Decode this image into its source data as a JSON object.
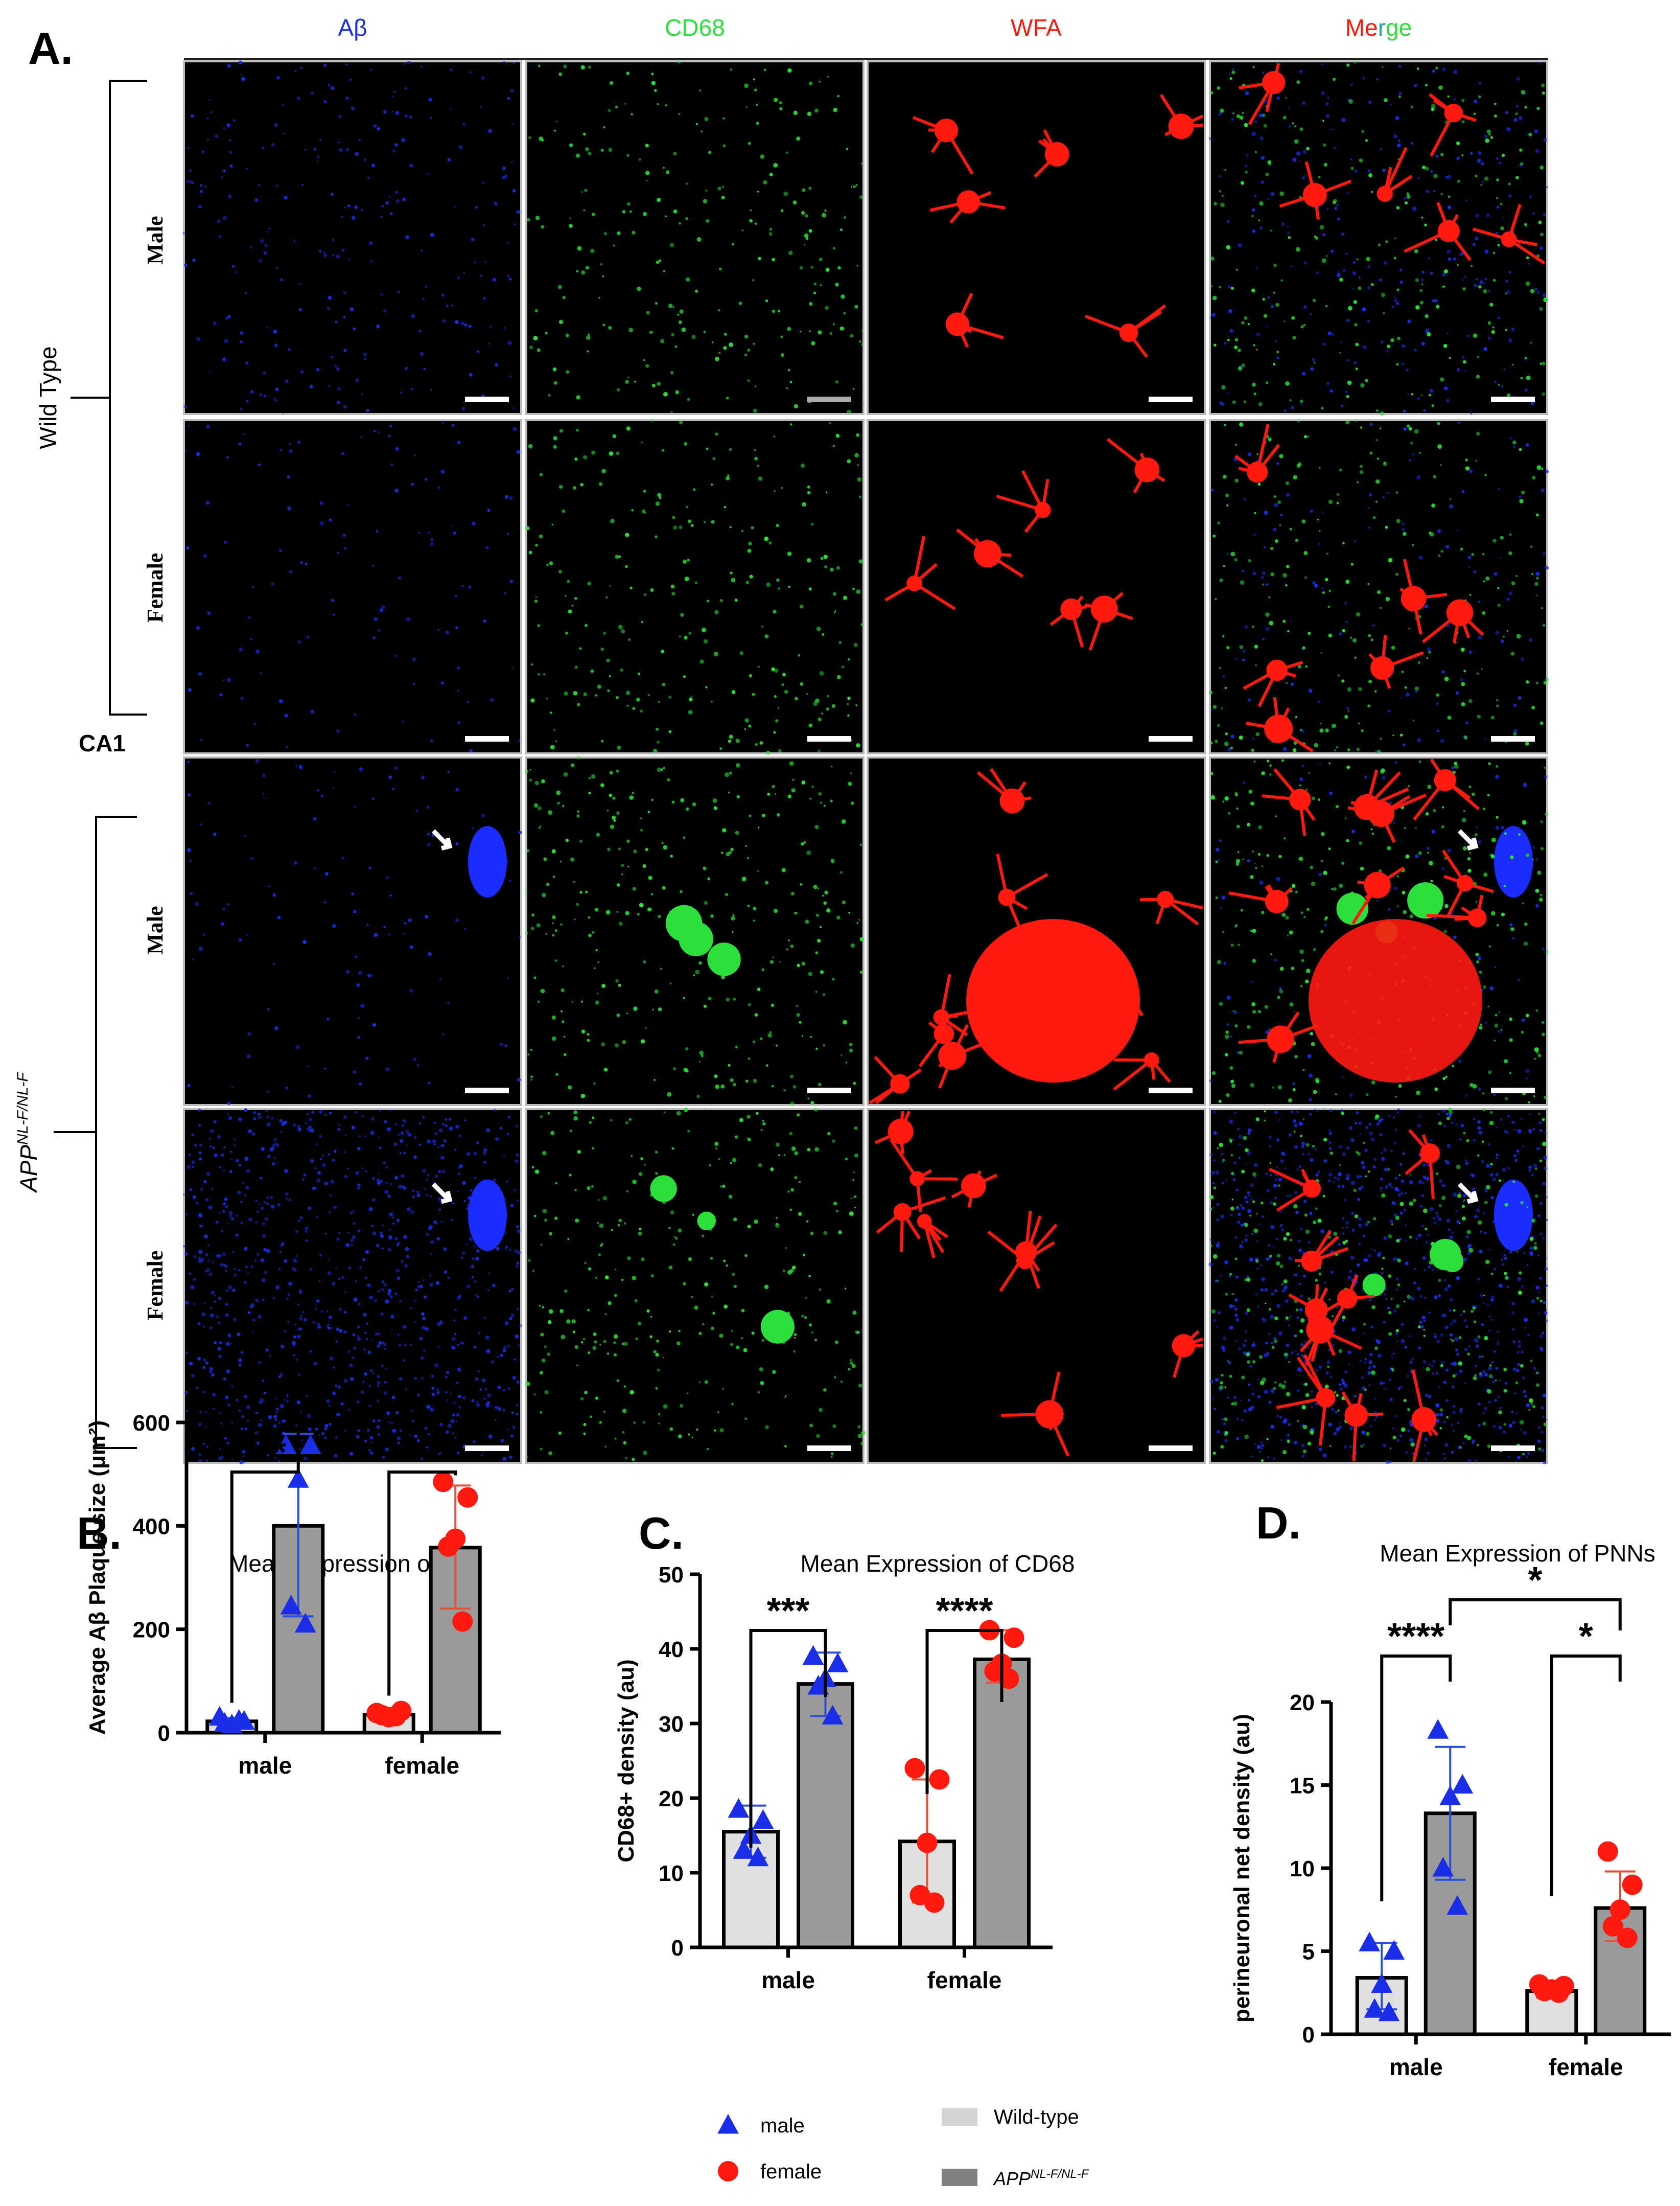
{
  "colors": {
    "blue": "#1a2ee8",
    "green": "#2be03a",
    "red": "#ff1a10",
    "teal": "#2aa0a0",
    "wt_bar": "#e0e0e0",
    "app_bar": "#9a9a9a",
    "bar_border": "#000000",
    "error_male": "#2b4fd9",
    "error_female": "#e8503a"
  },
  "panel_a": {
    "label": "A.",
    "columns": [
      "Aβ",
      "CD68",
      "WFA"
    ],
    "merge_parts": [
      {
        "text": "M",
        "color": "#ff1a10"
      },
      {
        "text": "e",
        "color": "#ff1a10"
      },
      {
        "text": "r",
        "color": "#2aa0a0"
      },
      {
        "text": "ge",
        "color": "#2be03a"
      }
    ],
    "groups": [
      {
        "label": "Wild Type",
        "rows": [
          "Male",
          "Female"
        ]
      },
      {
        "label_base": "APP",
        "label_sup": "NL-F/NL-F",
        "rows": [
          "Male",
          "Female"
        ]
      }
    ],
    "region_label": "CA1"
  },
  "chart_data": [
    {
      "panel": "B.",
      "type": "bar",
      "title": "Mean Expression of Aβ",
      "ylabel": "Average Aβ Plaque size (μm²)",
      "xlabel": "",
      "categories": [
        "male",
        "female"
      ],
      "ylim": [
        0,
        600
      ],
      "yticks": [
        0,
        200,
        400,
        600
      ],
      "series": [
        {
          "name": "Wild-type",
          "values": [
            22,
            35
          ],
          "error": [
            [
              18,
              28
            ],
            [
              28,
              42
            ]
          ],
          "points": [
            [
              30,
              22,
              15,
              18,
              24
            ],
            [
              38,
              42,
              30,
              34,
              32
            ]
          ]
        },
        {
          "name": "APP NL-F/NL-F",
          "values": [
            400,
            358
          ],
          "error": [
            [
              225,
              578
            ],
            [
              240,
              478
            ]
          ],
          "points": [
            [
              555,
              555,
              490,
              245,
              210
            ],
            [
              485,
              455,
              375,
              360,
              215
            ]
          ]
        }
      ],
      "significance": [
        {
          "label": "***",
          "from": [
            0,
            0
          ],
          "to": [
            0,
            1
          ]
        },
        {
          "label": "***",
          "from": [
            1,
            0
          ],
          "to": [
            1,
            1
          ]
        }
      ]
    },
    {
      "panel": "C.",
      "type": "bar",
      "title": "Mean Expression of CD68",
      "ylabel": "CD68+ density (au)",
      "xlabel": "",
      "categories": [
        "male",
        "female"
      ],
      "ylim": [
        0,
        50
      ],
      "yticks": [
        0,
        10,
        20,
        30,
        40,
        50
      ],
      "series": [
        {
          "name": "Wild-type",
          "values": [
            15.5,
            14.2
          ],
          "error": [
            [
              12,
              19
            ],
            [
              6,
              22.5
            ]
          ],
          "points": [
            [
              18.5,
              17,
              15,
              13,
              12
            ],
            [
              24,
              22.5,
              14,
              7,
              6
            ]
          ]
        },
        {
          "name": "APP NL-F/NL-F",
          "values": [
            35.3,
            38.6
          ],
          "error": [
            [
              31,
              39.5
            ],
            [
              35.5,
              42.5
            ]
          ],
          "points": [
            [
              39,
              38,
              36,
              35,
              31
            ],
            [
              42.5,
              41.5,
              38,
              37,
              36
            ]
          ]
        }
      ],
      "significance": [
        {
          "label": "***",
          "from": [
            0,
            0
          ],
          "to": [
            0,
            1
          ]
        },
        {
          "label": "****",
          "from": [
            1,
            0
          ],
          "to": [
            1,
            1
          ]
        }
      ]
    },
    {
      "panel": "D.",
      "type": "bar",
      "title": "Mean Expression of PNNs",
      "ylabel": "perineuronal net density (au)",
      "xlabel": "",
      "categories": [
        "male",
        "female"
      ],
      "ylim": [
        0,
        20
      ],
      "yticks": [
        0,
        5,
        10,
        15,
        20
      ],
      "series": [
        {
          "name": "Wild-type",
          "values": [
            3.4,
            2.6
          ],
          "error": [
            [
              1.5,
              5.5
            ],
            [
              2.2,
              3.1
            ]
          ],
          "points": [
            [
              5.5,
              5,
              3,
              1.5,
              1.3
            ],
            [
              3,
              2.9,
              2.7,
              2.6,
              2.5
            ]
          ]
        },
        {
          "name": "APP NL-F/NL-F",
          "values": [
            13.3,
            7.6
          ],
          "error": [
            [
              9.3,
              17.3
            ],
            [
              5.6,
              9.8
            ]
          ],
          "points": [
            [
              18.3,
              15,
              14.3,
              10,
              7.7
            ],
            [
              11,
              9,
              7.5,
              6.5,
              5.8
            ]
          ]
        }
      ],
      "significance": [
        {
          "label": "****",
          "from": [
            0,
            0
          ],
          "to": [
            0,
            1
          ]
        },
        {
          "label": "*",
          "from": [
            1,
            0
          ],
          "to": [
            1,
            1
          ]
        },
        {
          "label": "*",
          "from": [
            0,
            1
          ],
          "to": [
            1,
            1
          ]
        }
      ]
    }
  ],
  "legend": {
    "male": "male",
    "female": "female",
    "wild_type": "Wild-type",
    "app_base": "APP",
    "app_sup": "NL-F/NL-F"
  }
}
